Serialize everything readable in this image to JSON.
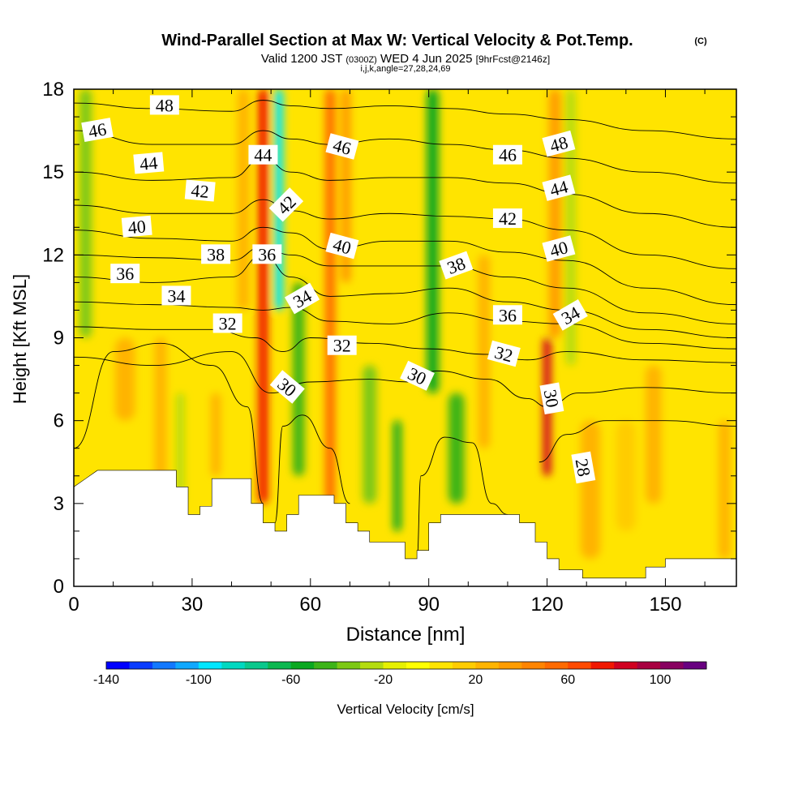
{
  "chart_data": {
    "type": "heatmap",
    "title": "Wind-Parallel Section at Max W: Vertical Velocity & Pot.Temp.",
    "title_tag": "(C)",
    "subtitle_parts": {
      "valid": "Valid 1200 JST",
      "utc": "(0300Z)",
      "date": "WED 4 Jun 2025",
      "fcst": "[9hrFcst@2146z]"
    },
    "subtitle2": "i,j,k,angle=27,28,24,69",
    "xlabel": "Distance [nm]",
    "ylabel": "Height [Kft MSL]",
    "xlim": [
      0,
      168
    ],
    "ylim": [
      0,
      18
    ],
    "x_ticks": [
      0,
      30,
      60,
      90,
      120,
      150
    ],
    "y_ticks": [
      0,
      3,
      6,
      9,
      12,
      15,
      18
    ],
    "colorbar": {
      "label": "Vertical Velocity [cm/s]",
      "min": -140,
      "max": 120,
      "step": 10,
      "ticks": [
        -140,
        -100,
        -60,
        -20,
        20,
        60,
        100
      ],
      "colors": [
        "#0000ff",
        "#0a3cff",
        "#1278ff",
        "#10a8ff",
        "#00e6ff",
        "#00d8c0",
        "#0ac88c",
        "#0cb850",
        "#0aa820",
        "#3cb418",
        "#7cc814",
        "#b4dc10",
        "#e6f000",
        "#ffff00",
        "#ffe400",
        "#ffcc00",
        "#ffb400",
        "#ff9c00",
        "#ff8400",
        "#ff6a00",
        "#ff4a00",
        "#f01800",
        "#d00020",
        "#a80040",
        "#880060",
        "#680080"
      ]
    },
    "background_velocity_cms": 5,
    "vertical_velocity_features": [
      {
        "x": 3,
        "y0": 9,
        "y1": 18,
        "w": 3,
        "value": -40
      },
      {
        "x": 13,
        "y0": 6,
        "y1": 9,
        "w": 5,
        "value": 20
      },
      {
        "x": 22,
        "y0": 3,
        "y1": 9,
        "w": 3,
        "value": 20
      },
      {
        "x": 27,
        "y0": 3,
        "y1": 7,
        "w": 2,
        "value": -30
      },
      {
        "x": 36,
        "y0": 4,
        "y1": 7,
        "w": 2.5,
        "value": 25
      },
      {
        "x": 43,
        "y0": 10,
        "y1": 18,
        "w": 3,
        "value": 20
      },
      {
        "x": 48,
        "y0": 3,
        "y1": 18,
        "w": 2.5,
        "value": 75
      },
      {
        "x": 52,
        "y0": 10,
        "y1": 18,
        "w": 2.2,
        "value": -100
      },
      {
        "x": 57,
        "y0": 4,
        "y1": 11,
        "w": 3,
        "value": -50
      },
      {
        "x": 65,
        "y0": 3,
        "y1": 18,
        "w": 2.5,
        "value": 50
      },
      {
        "x": 69,
        "y0": 11,
        "y1": 18,
        "w": 2.5,
        "value": 30
      },
      {
        "x": 75,
        "y0": 3,
        "y1": 8,
        "w": 3.5,
        "value": -40
      },
      {
        "x": 82,
        "y0": 2,
        "y1": 6,
        "w": 2,
        "value": -60
      },
      {
        "x": 91,
        "y0": 7,
        "y1": 18,
        "w": 3,
        "value": -60
      },
      {
        "x": 97,
        "y0": 3,
        "y1": 7,
        "w": 4,
        "value": -50
      },
      {
        "x": 104,
        "y0": 5,
        "y1": 12,
        "w": 3,
        "value": 25
      },
      {
        "x": 120,
        "y0": 4,
        "y1": 9,
        "w": 2,
        "value": 80
      },
      {
        "x": 122,
        "y0": 9,
        "y1": 18,
        "w": 3,
        "value": 30
      },
      {
        "x": 126,
        "y0": 8,
        "y1": 18,
        "w": 2.5,
        "value": -30
      },
      {
        "x": 131,
        "y0": 1,
        "y1": 6,
        "w": 5,
        "value": 25
      },
      {
        "x": 140,
        "y0": 2,
        "y1": 6,
        "w": 5,
        "value": 15
      },
      {
        "x": 147,
        "y0": 3,
        "y1": 8,
        "w": 4,
        "value": 20
      },
      {
        "x": 165,
        "y0": 1,
        "y1": 6,
        "w": 3,
        "value": 20
      }
    ],
    "terrain": [
      [
        0,
        3.6
      ],
      [
        3,
        3.9
      ],
      [
        6,
        4.2
      ],
      [
        26,
        4.2
      ],
      [
        26,
        3.6
      ],
      [
        29,
        3.6
      ],
      [
        29,
        2.6
      ],
      [
        32,
        2.6
      ],
      [
        32,
        2.9
      ],
      [
        35,
        2.9
      ],
      [
        35,
        3.9
      ],
      [
        45,
        3.9
      ],
      [
        45,
        3.0
      ],
      [
        48,
        3.0
      ],
      [
        48,
        2.3
      ],
      [
        51,
        2.3
      ],
      [
        51,
        2.0
      ],
      [
        54,
        2.0
      ],
      [
        54,
        2.6
      ],
      [
        57,
        2.6
      ],
      [
        57,
        3.3
      ],
      [
        66,
        3.3
      ],
      [
        66,
        3.0
      ],
      [
        69,
        3.0
      ],
      [
        69,
        2.3
      ],
      [
        72,
        2.3
      ],
      [
        72,
        2.0
      ],
      [
        75,
        2.0
      ],
      [
        75,
        1.6
      ],
      [
        84,
        1.6
      ],
      [
        84,
        1.0
      ],
      [
        87,
        1.0
      ],
      [
        87,
        1.3
      ],
      [
        90,
        1.3
      ],
      [
        90,
        2.3
      ],
      [
        93,
        2.3
      ],
      [
        93,
        2.6
      ],
      [
        105,
        2.6
      ],
      [
        105,
        2.6
      ],
      [
        113,
        2.6
      ],
      [
        113,
        2.3
      ],
      [
        117,
        2.3
      ],
      [
        117,
        1.6
      ],
      [
        120,
        1.6
      ],
      [
        120,
        1.0
      ],
      [
        123,
        1.0
      ],
      [
        123,
        0.6
      ],
      [
        129,
        0.6
      ],
      [
        129,
        0.3
      ],
      [
        145,
        0.3
      ],
      [
        145,
        0.7
      ],
      [
        150,
        0.7
      ],
      [
        150,
        1.0
      ],
      [
        168,
        1.0
      ]
    ],
    "theta_contours": [
      {
        "label": "28",
        "pts": [
          [
            118,
            4.5
          ],
          [
            125,
            5.5
          ],
          [
            135,
            6.0
          ],
          [
            150,
            6.0
          ],
          [
            168,
            5.8
          ]
        ]
      },
      {
        "label": "30",
        "pts": [
          [
            0,
            5.0
          ],
          [
            10,
            8.5
          ],
          [
            22,
            8.8
          ],
          [
            35,
            8.0
          ],
          [
            44,
            6.5
          ],
          [
            48,
            3.0
          ]
        ]
      },
      {
        "label": "30",
        "pts": [
          [
            51,
            2.3
          ],
          [
            53,
            5.8
          ],
          [
            58,
            6.2
          ],
          [
            65,
            5.0
          ],
          [
            70,
            3.0
          ]
        ]
      },
      {
        "label": "30",
        "pts": [
          [
            87,
            1.0
          ],
          [
            88,
            4.0
          ],
          [
            94,
            5.4
          ],
          [
            101,
            5.2
          ],
          [
            106,
            3.0
          ],
          [
            110,
            2.6
          ]
        ]
      },
      {
        "label": "30",
        "pts": [
          [
            0,
            8.3
          ],
          [
            20,
            8.0
          ],
          [
            40,
            8.5
          ],
          [
            50,
            7.0
          ],
          [
            60,
            7.4
          ],
          [
            75,
            7.5
          ],
          [
            85,
            7.4
          ],
          [
            92,
            7.8
          ],
          [
            105,
            7.5
          ],
          [
            115,
            6.8
          ],
          [
            120,
            6.5
          ],
          [
            128,
            7.0
          ],
          [
            145,
            7.2
          ],
          [
            168,
            7.0
          ]
        ]
      },
      {
        "label": "32",
        "pts": [
          [
            0,
            9.4
          ],
          [
            20,
            9.3
          ],
          [
            35,
            9.3
          ],
          [
            46,
            9.0
          ],
          [
            53,
            8.5
          ],
          [
            60,
            9.0
          ],
          [
            75,
            8.8
          ],
          [
            90,
            8.6
          ],
          [
            105,
            8.4
          ],
          [
            115,
            8.2
          ],
          [
            125,
            8.5
          ],
          [
            145,
            8.2
          ],
          [
            168,
            8.1
          ]
        ]
      },
      {
        "label": "34",
        "pts": [
          [
            0,
            10.3
          ],
          [
            20,
            10.2
          ],
          [
            40,
            10.1
          ],
          [
            48,
            10.0
          ],
          [
            55,
            10.1
          ],
          [
            65,
            9.6
          ],
          [
            80,
            9.5
          ],
          [
            95,
            9.9
          ],
          [
            110,
            9.6
          ],
          [
            125,
            9.5
          ],
          [
            145,
            8.8
          ],
          [
            168,
            8.6
          ]
        ]
      },
      {
        "label": "36",
        "pts": [
          [
            0,
            11.2
          ],
          [
            20,
            11.0
          ],
          [
            40,
            11.2
          ],
          [
            48,
            12.0
          ],
          [
            55,
            11.2
          ],
          [
            65,
            10.5
          ],
          [
            80,
            10.6
          ],
          [
            95,
            10.8
          ],
          [
            110,
            10.3
          ],
          [
            125,
            10.0
          ],
          [
            145,
            9.3
          ],
          [
            168,
            9.0
          ]
        ]
      },
      {
        "label": "38",
        "pts": [
          [
            0,
            12.0
          ],
          [
            20,
            11.9
          ],
          [
            40,
            11.8
          ],
          [
            48,
            12.3
          ],
          [
            55,
            12.0
          ],
          [
            65,
            11.6
          ],
          [
            80,
            11.6
          ],
          [
            95,
            11.6
          ],
          [
            110,
            11.2
          ],
          [
            125,
            10.8
          ],
          [
            145,
            9.9
          ],
          [
            168,
            9.5
          ]
        ]
      },
      {
        "label": "40",
        "pts": [
          [
            0,
            12.9
          ],
          [
            20,
            12.6
          ],
          [
            40,
            12.5
          ],
          [
            48,
            13.0
          ],
          [
            55,
            12.8
          ],
          [
            65,
            12.2
          ],
          [
            80,
            12.5
          ],
          [
            95,
            12.5
          ],
          [
            110,
            12.1
          ],
          [
            125,
            11.8
          ],
          [
            145,
            10.8
          ],
          [
            168,
            10.2
          ]
        ]
      },
      {
        "label": "42",
        "pts": [
          [
            0,
            13.8
          ],
          [
            20,
            13.5
          ],
          [
            40,
            13.5
          ],
          [
            48,
            14.0
          ],
          [
            55,
            13.6
          ],
          [
            65,
            13.3
          ],
          [
            80,
            13.5
          ],
          [
            95,
            13.4
          ],
          [
            110,
            13.3
          ],
          [
            125,
            12.9
          ],
          [
            145,
            12.0
          ],
          [
            168,
            11.5
          ]
        ]
      },
      {
        "label": "44",
        "pts": [
          [
            0,
            15.0
          ],
          [
            20,
            14.7
          ],
          [
            40,
            14.8
          ],
          [
            48,
            15.5
          ],
          [
            55,
            15.0
          ],
          [
            65,
            14.7
          ],
          [
            80,
            14.8
          ],
          [
            95,
            14.8
          ],
          [
            110,
            14.6
          ],
          [
            125,
            14.2
          ],
          [
            145,
            13.5
          ],
          [
            168,
            13.0
          ]
        ]
      },
      {
        "label": "46",
        "pts": [
          [
            0,
            16.5
          ],
          [
            20,
            16.0
          ],
          [
            40,
            16.0
          ],
          [
            48,
            16.5
          ],
          [
            55,
            16.2
          ],
          [
            65,
            16.0
          ],
          [
            80,
            16.2
          ],
          [
            95,
            16.0
          ],
          [
            110,
            15.8
          ],
          [
            125,
            15.5
          ],
          [
            145,
            15.0
          ],
          [
            168,
            14.6
          ]
        ]
      },
      {
        "label": "48",
        "pts": [
          [
            0,
            17.5
          ],
          [
            20,
            17.3
          ],
          [
            40,
            17.2
          ],
          [
            48,
            17.6
          ],
          [
            55,
            17.4
          ],
          [
            65,
            17.3
          ],
          [
            80,
            17.4
          ],
          [
            95,
            17.3
          ],
          [
            110,
            17.1
          ],
          [
            125,
            16.9
          ],
          [
            145,
            16.5
          ],
          [
            168,
            16.2
          ]
        ]
      }
    ],
    "contour_labels": [
      {
        "text": "48",
        "x": 23,
        "y": 17.4,
        "rot": 0
      },
      {
        "text": "46",
        "x": 6,
        "y": 16.5,
        "rot": 10
      },
      {
        "text": "44",
        "x": 19,
        "y": 15.3,
        "rot": 5
      },
      {
        "text": "44",
        "x": 48,
        "y": 15.6,
        "rot": 0
      },
      {
        "text": "46",
        "x": 68,
        "y": 15.9,
        "rot": -15
      },
      {
        "text": "46",
        "x": 110,
        "y": 15.6,
        "rot": 0
      },
      {
        "text": "48",
        "x": 123,
        "y": 16.0,
        "rot": 15
      },
      {
        "text": "42",
        "x": 32,
        "y": 14.3,
        "rot": -5
      },
      {
        "text": "42",
        "x": 54,
        "y": 13.8,
        "rot": 45
      },
      {
        "text": "44",
        "x": 123,
        "y": 14.4,
        "rot": 15
      },
      {
        "text": "40",
        "x": 16,
        "y": 13.0,
        "rot": 5
      },
      {
        "text": "42",
        "x": 110,
        "y": 13.3,
        "rot": 0
      },
      {
        "text": "40",
        "x": 68,
        "y": 12.3,
        "rot": -15
      },
      {
        "text": "40",
        "x": 123,
        "y": 12.2,
        "rot": 15
      },
      {
        "text": "38",
        "x": 36,
        "y": 12.0,
        "rot": 0
      },
      {
        "text": "36",
        "x": 49,
        "y": 12.0,
        "rot": 0
      },
      {
        "text": "38",
        "x": 97,
        "y": 11.6,
        "rot": 20
      },
      {
        "text": "36",
        "x": 13,
        "y": 11.3,
        "rot": 0
      },
      {
        "text": "34",
        "x": 26,
        "y": 10.5,
        "rot": 0
      },
      {
        "text": "34",
        "x": 58,
        "y": 10.4,
        "rot": 30
      },
      {
        "text": "36",
        "x": 110,
        "y": 9.8,
        "rot": 0
      },
      {
        "text": "34",
        "x": 126,
        "y": 9.8,
        "rot": 30
      },
      {
        "text": "32",
        "x": 39,
        "y": 9.5,
        "rot": 0
      },
      {
        "text": "32",
        "x": 68,
        "y": 8.7,
        "rot": 0
      },
      {
        "text": "32",
        "x": 109,
        "y": 8.4,
        "rot": -15
      },
      {
        "text": "30",
        "x": 54,
        "y": 7.2,
        "rot": -40
      },
      {
        "text": "30",
        "x": 87,
        "y": 7.6,
        "rot": -25
      },
      {
        "text": "30",
        "x": 121,
        "y": 6.8,
        "rot": -80
      },
      {
        "text": "28",
        "x": 129,
        "y": 4.3,
        "rot": -80
      }
    ]
  }
}
